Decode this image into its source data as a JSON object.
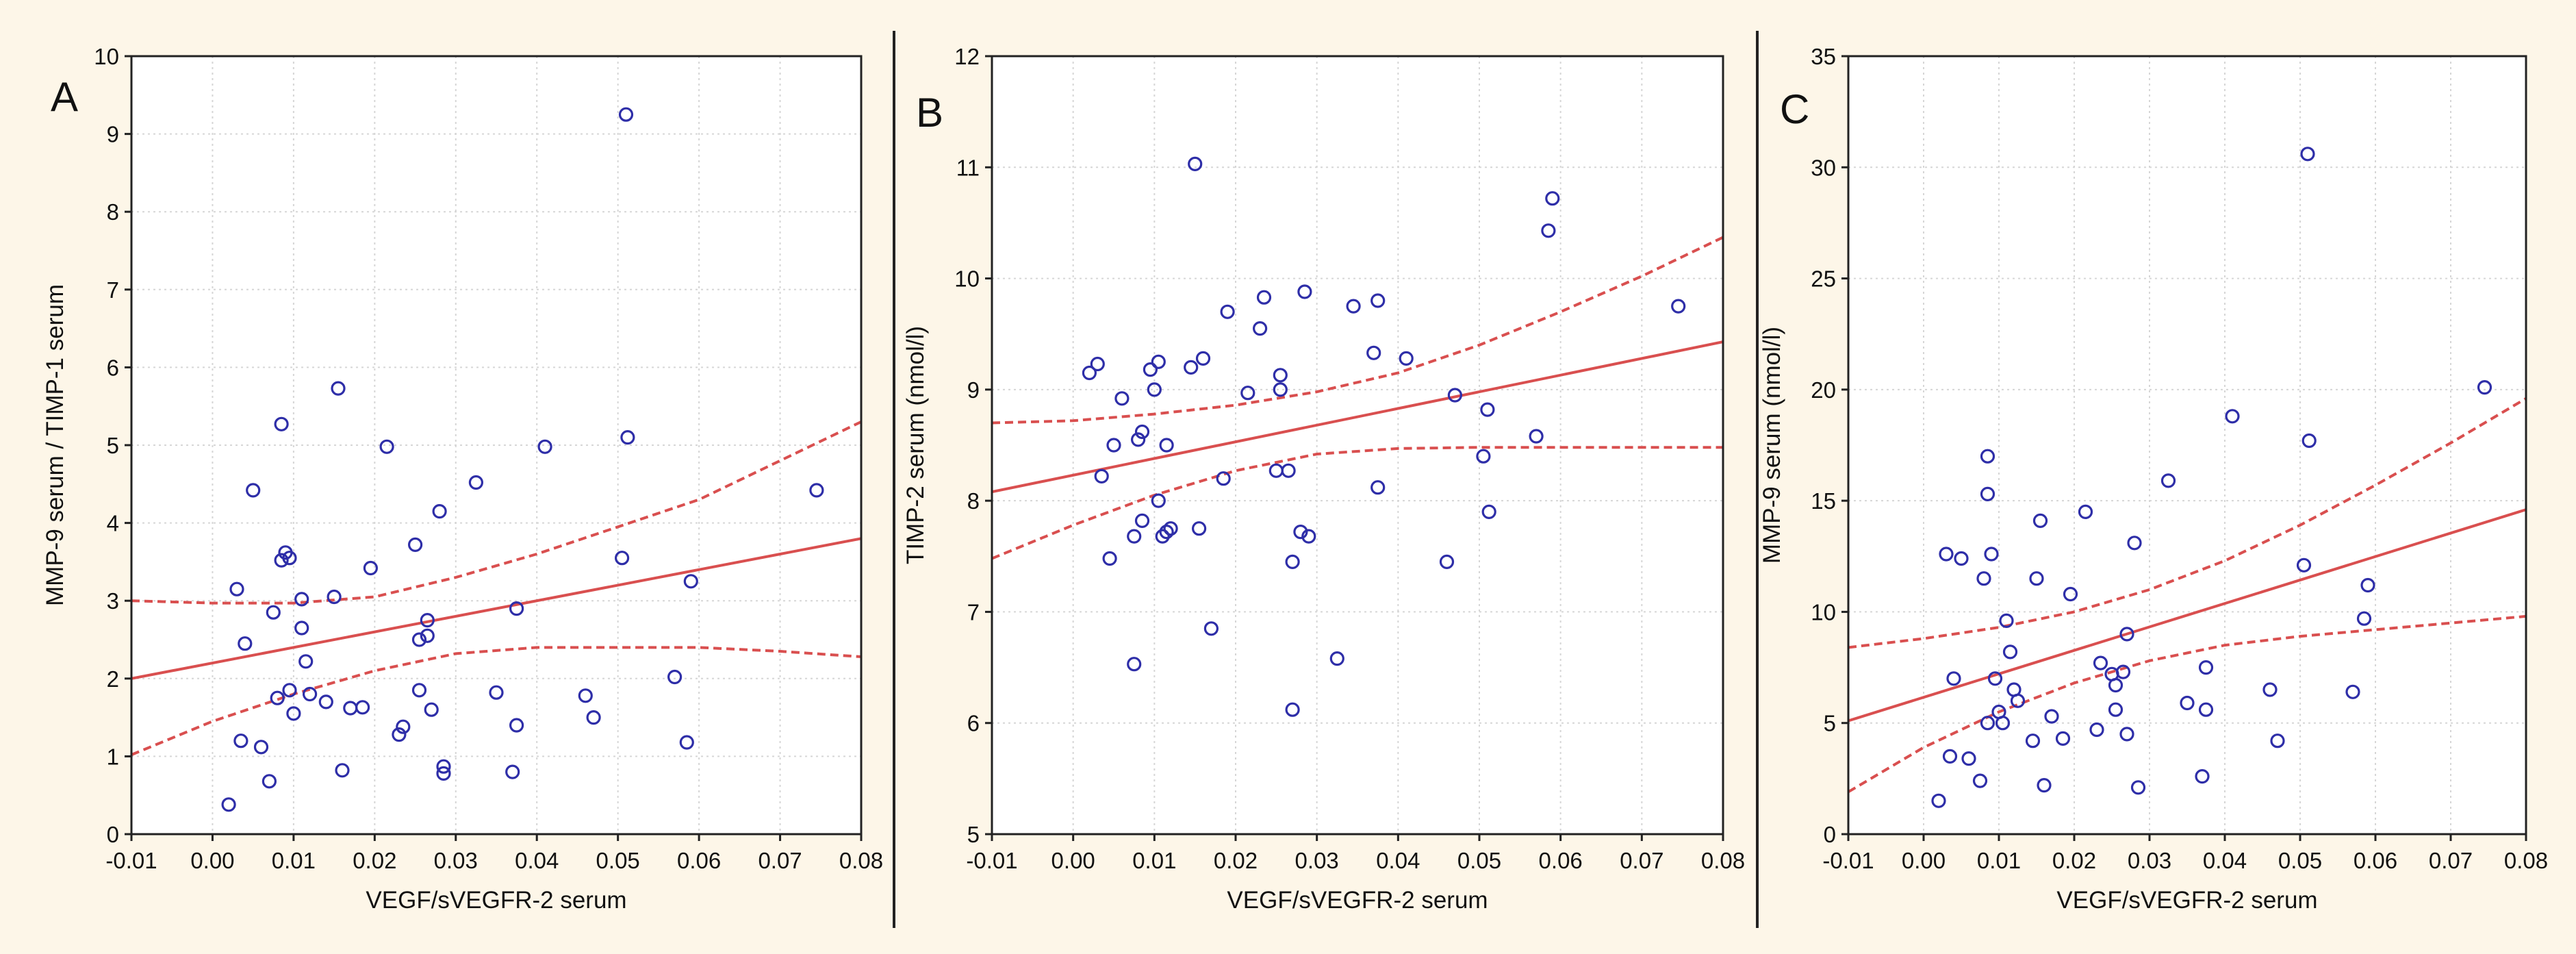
{
  "figure": {
    "background": "#fdf6e8",
    "plot_background": "#ffffff",
    "point_color": "#2e2ea8",
    "fit_color": "#d94f4f"
  },
  "chart_data": [
    {
      "type": "scatter",
      "panel_label": "A",
      "xlabel": "VEGF/sVEGFR-2 serum",
      "ylabel": "MMP-9 serum / TIMP-1 serum",
      "xlim": [
        -0.01,
        0.08
      ],
      "ylim": [
        0,
        10
      ],
      "xticks": [
        -0.01,
        0.0,
        0.01,
        0.02,
        0.03,
        0.04,
        0.05,
        0.06,
        0.07,
        0.08
      ],
      "xtick_labels": [
        "-0.01",
        "0.00",
        "0.01",
        "0.02",
        "0.03",
        "0.04",
        "0.05",
        "0.06",
        "0.07",
        "0.08"
      ],
      "yticks": [
        0,
        1,
        2,
        3,
        4,
        5,
        6,
        7,
        8,
        9,
        10
      ],
      "ytick_labels": [
        "0",
        "1",
        "2",
        "3",
        "4",
        "5",
        "6",
        "7",
        "8",
        "9",
        "10"
      ],
      "grid": true,
      "fit_line": {
        "x": [
          -0.01,
          0.08
        ],
        "y": [
          2.0,
          3.8
        ]
      },
      "ci_upper": {
        "x": [
          -0.01,
          0.0,
          0.01,
          0.02,
          0.03,
          0.04,
          0.05,
          0.06,
          0.07,
          0.08
        ],
        "y": [
          3.0,
          2.97,
          2.97,
          3.05,
          3.3,
          3.6,
          3.95,
          4.3,
          4.8,
          5.3
        ]
      },
      "ci_lower": {
        "x": [
          -0.01,
          0.0,
          0.01,
          0.02,
          0.03,
          0.04,
          0.05,
          0.06,
          0.07,
          0.08
        ],
        "y": [
          1.02,
          1.45,
          1.8,
          2.1,
          2.32,
          2.4,
          2.4,
          2.4,
          2.35,
          2.28
        ]
      },
      "points": [
        [
          0.002,
          0.38
        ],
        [
          0.003,
          3.15
        ],
        [
          0.0035,
          1.2
        ],
        [
          0.004,
          2.45
        ],
        [
          0.005,
          4.42
        ],
        [
          0.006,
          1.12
        ],
        [
          0.007,
          0.68
        ],
        [
          0.0075,
          2.85
        ],
        [
          0.008,
          1.75
        ],
        [
          0.0085,
          3.52
        ],
        [
          0.0085,
          5.27
        ],
        [
          0.009,
          3.62
        ],
        [
          0.0095,
          1.85
        ],
        [
          0.0095,
          3.55
        ],
        [
          0.01,
          1.55
        ],
        [
          0.011,
          3.02
        ],
        [
          0.011,
          2.65
        ],
        [
          0.0115,
          2.22
        ],
        [
          0.012,
          1.8
        ],
        [
          0.014,
          1.7
        ],
        [
          0.015,
          3.05
        ],
        [
          0.0155,
          5.73
        ],
        [
          0.016,
          0.82
        ],
        [
          0.017,
          1.62
        ],
        [
          0.0185,
          1.63
        ],
        [
          0.0195,
          3.42
        ],
        [
          0.0215,
          4.98
        ],
        [
          0.023,
          1.28
        ],
        [
          0.0235,
          1.38
        ],
        [
          0.025,
          3.72
        ],
        [
          0.0255,
          1.85
        ],
        [
          0.0255,
          2.5
        ],
        [
          0.0265,
          2.75
        ],
        [
          0.0265,
          2.55
        ],
        [
          0.027,
          1.6
        ],
        [
          0.028,
          4.15
        ],
        [
          0.0285,
          0.78
        ],
        [
          0.0285,
          0.87
        ],
        [
          0.0325,
          4.52
        ],
        [
          0.035,
          1.82
        ],
        [
          0.037,
          0.8
        ],
        [
          0.0375,
          1.4
        ],
        [
          0.0375,
          2.9
        ],
        [
          0.041,
          4.98
        ],
        [
          0.046,
          1.78
        ],
        [
          0.047,
          1.5
        ],
        [
          0.0505,
          3.55
        ],
        [
          0.051,
          9.25
        ],
        [
          0.0512,
          5.1
        ],
        [
          0.057,
          2.02
        ],
        [
          0.0585,
          1.18
        ],
        [
          0.059,
          3.25
        ],
        [
          0.0745,
          4.42
        ]
      ]
    },
    {
      "type": "scatter",
      "panel_label": "B",
      "xlabel": "VEGF/sVEGFR-2 serum",
      "ylabel": "TIMP-2 serum (nmol/l)",
      "xlim": [
        -0.01,
        0.08
      ],
      "ylim": [
        5,
        12
      ],
      "xticks": [
        -0.01,
        0.0,
        0.01,
        0.02,
        0.03,
        0.04,
        0.05,
        0.06,
        0.07,
        0.08
      ],
      "xtick_labels": [
        "-0.01",
        "0.00",
        "0.01",
        "0.02",
        "0.03",
        "0.04",
        "0.05",
        "0.06",
        "0.07",
        "0.08"
      ],
      "yticks": [
        5,
        6,
        7,
        8,
        9,
        10,
        11,
        12
      ],
      "ytick_labels": [
        "5",
        "6",
        "7",
        "8",
        "9",
        "10",
        "11",
        "12"
      ],
      "grid": true,
      "fit_line": {
        "x": [
          -0.01,
          0.08
        ],
        "y": [
          8.08,
          9.43
        ]
      },
      "ci_upper": {
        "x": [
          -0.01,
          0.0,
          0.01,
          0.02,
          0.03,
          0.04,
          0.05,
          0.06,
          0.07,
          0.08
        ],
        "y": [
          8.7,
          8.72,
          8.78,
          8.86,
          8.98,
          9.15,
          9.4,
          9.7,
          10.02,
          10.37
        ]
      },
      "ci_lower": {
        "x": [
          -0.01,
          0.0,
          0.01,
          0.02,
          0.03,
          0.04,
          0.05,
          0.06,
          0.07,
          0.08
        ],
        "y": [
          7.48,
          7.78,
          8.05,
          8.27,
          8.42,
          8.47,
          8.48,
          8.48,
          8.48,
          8.48
        ]
      },
      "points": [
        [
          0.002,
          9.15
        ],
        [
          0.003,
          9.23
        ],
        [
          0.0035,
          8.22
        ],
        [
          0.0045,
          7.48
        ],
        [
          0.005,
          8.5
        ],
        [
          0.006,
          8.92
        ],
        [
          0.0075,
          6.53
        ],
        [
          0.0075,
          7.68
        ],
        [
          0.008,
          8.55
        ],
        [
          0.0085,
          7.82
        ],
        [
          0.0085,
          8.62
        ],
        [
          0.0095,
          9.18
        ],
        [
          0.01,
          9.0
        ],
        [
          0.0105,
          9.25
        ],
        [
          0.0105,
          8.0
        ],
        [
          0.011,
          7.68
        ],
        [
          0.0115,
          8.5
        ],
        [
          0.0115,
          7.72
        ],
        [
          0.012,
          7.75
        ],
        [
          0.0145,
          9.2
        ],
        [
          0.015,
          11.03
        ],
        [
          0.0155,
          7.75
        ],
        [
          0.016,
          9.28
        ],
        [
          0.017,
          6.85
        ],
        [
          0.0185,
          8.2
        ],
        [
          0.019,
          9.7
        ],
        [
          0.0215,
          8.97
        ],
        [
          0.023,
          9.55
        ],
        [
          0.0235,
          9.83
        ],
        [
          0.025,
          8.27
        ],
        [
          0.0255,
          9.0
        ],
        [
          0.0255,
          9.13
        ],
        [
          0.0265,
          8.27
        ],
        [
          0.027,
          7.45
        ],
        [
          0.027,
          6.12
        ],
        [
          0.028,
          7.72
        ],
        [
          0.0285,
          9.88
        ],
        [
          0.029,
          7.68
        ],
        [
          0.0325,
          6.58
        ],
        [
          0.0345,
          9.75
        ],
        [
          0.037,
          9.33
        ],
        [
          0.0375,
          9.8
        ],
        [
          0.0375,
          8.12
        ],
        [
          0.041,
          9.28
        ],
        [
          0.046,
          7.45
        ],
        [
          0.047,
          8.95
        ],
        [
          0.0505,
          8.4
        ],
        [
          0.051,
          8.82
        ],
        [
          0.0512,
          7.9
        ],
        [
          0.057,
          8.58
        ],
        [
          0.0585,
          10.43
        ],
        [
          0.059,
          10.72
        ],
        [
          0.0745,
          9.75
        ]
      ]
    },
    {
      "type": "scatter",
      "panel_label": "C",
      "xlabel": "VEGF/sVEGFR-2 serum",
      "ylabel": "MMP-9 serum (nmol/l)",
      "xlim": [
        -0.01,
        0.08
      ],
      "ylim": [
        0,
        35
      ],
      "xticks": [
        -0.01,
        0.0,
        0.01,
        0.02,
        0.03,
        0.04,
        0.05,
        0.06,
        0.07,
        0.08
      ],
      "xtick_labels": [
        "-0.01",
        "0.00",
        "0.01",
        "0.02",
        "0.03",
        "0.04",
        "0.05",
        "0.06",
        "0.07",
        "0.08"
      ],
      "yticks": [
        0,
        5,
        10,
        15,
        20,
        25,
        30,
        35
      ],
      "ytick_labels": [
        "0",
        "5",
        "10",
        "15",
        "20",
        "25",
        "30",
        "35"
      ],
      "grid": true,
      "fit_line": {
        "x": [
          -0.01,
          0.08
        ],
        "y": [
          5.1,
          14.6
        ]
      },
      "ci_upper": {
        "x": [
          -0.01,
          0.0,
          0.01,
          0.02,
          0.03,
          0.04,
          0.05,
          0.06,
          0.07,
          0.08
        ],
        "y": [
          8.4,
          8.8,
          9.3,
          10.0,
          11.0,
          12.3,
          13.9,
          15.7,
          17.6,
          19.6
        ]
      },
      "ci_lower": {
        "x": [
          -0.01,
          0.0,
          0.01,
          0.02,
          0.03,
          0.04,
          0.05,
          0.06,
          0.07,
          0.08
        ],
        "y": [
          1.9,
          3.9,
          5.5,
          6.8,
          7.8,
          8.5,
          8.9,
          9.2,
          9.5,
          9.8
        ]
      },
      "points": [
        [
          0.002,
          1.5
        ],
        [
          0.003,
          12.6
        ],
        [
          0.0035,
          3.5
        ],
        [
          0.004,
          7.0
        ],
        [
          0.005,
          12.4
        ],
        [
          0.006,
          3.4
        ],
        [
          0.0075,
          2.4
        ],
        [
          0.008,
          11.5
        ],
        [
          0.0085,
          5.0
        ],
        [
          0.0085,
          17.0
        ],
        [
          0.0085,
          15.3
        ],
        [
          0.009,
          12.6
        ],
        [
          0.0095,
          7.0
        ],
        [
          0.01,
          5.5
        ],
        [
          0.0105,
          5.0
        ],
        [
          0.011,
          9.6
        ],
        [
          0.0115,
          8.2
        ],
        [
          0.012,
          6.5
        ],
        [
          0.0125,
          6.0
        ],
        [
          0.0145,
          4.2
        ],
        [
          0.015,
          11.5
        ],
        [
          0.0155,
          14.1
        ],
        [
          0.016,
          2.2
        ],
        [
          0.017,
          5.3
        ],
        [
          0.0185,
          4.3
        ],
        [
          0.0195,
          10.8
        ],
        [
          0.0215,
          14.5
        ],
        [
          0.023,
          4.7
        ],
        [
          0.0235,
          7.7
        ],
        [
          0.025,
          7.2
        ],
        [
          0.0255,
          6.7
        ],
        [
          0.0255,
          5.6
        ],
        [
          0.0265,
          7.3
        ],
        [
          0.027,
          9.0
        ],
        [
          0.027,
          4.5
        ],
        [
          0.028,
          13.1
        ],
        [
          0.0285,
          2.1
        ],
        [
          0.0325,
          15.9
        ],
        [
          0.035,
          5.9
        ],
        [
          0.037,
          2.6
        ],
        [
          0.0375,
          5.6
        ],
        [
          0.0375,
          7.5
        ],
        [
          0.041,
          18.8
        ],
        [
          0.046,
          6.5
        ],
        [
          0.047,
          4.2
        ],
        [
          0.0505,
          12.1
        ],
        [
          0.051,
          30.6
        ],
        [
          0.0512,
          17.7
        ],
        [
          0.057,
          6.4
        ],
        [
          0.0585,
          9.7
        ],
        [
          0.059,
          11.2
        ],
        [
          0.0745,
          20.1
        ]
      ]
    }
  ]
}
